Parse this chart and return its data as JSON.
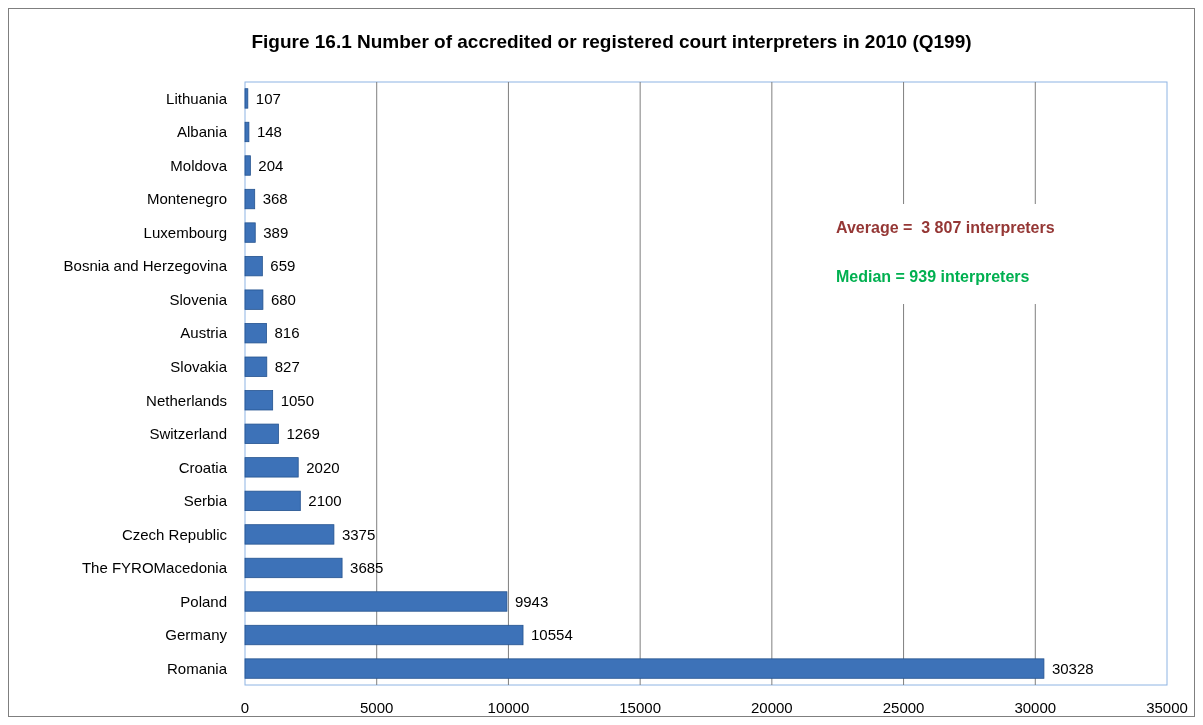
{
  "chart_data": {
    "type": "bar",
    "orientation": "horizontal",
    "title": "Figure 16.1 Number of accredited or registered court interpreters in 2010 (Q199)",
    "categories": [
      "Lithuania",
      "Albania",
      "Moldova",
      "Montenegro",
      "Luxembourg",
      "Bosnia and Herzegovina",
      "Slovenia",
      "Austria",
      "Slovakia",
      "Netherlands",
      "Switzerland",
      "Croatia",
      "Serbia",
      "Czech Republic",
      "The FYROMacedonia",
      "Poland",
      "Germany",
      "Romania"
    ],
    "values": [
      107,
      148,
      204,
      368,
      389,
      659,
      680,
      816,
      827,
      1050,
      1269,
      2020,
      2100,
      3375,
      3685,
      9943,
      10554,
      30328
    ],
    "color": "#3d72b8",
    "xlim": [
      0,
      35000
    ],
    "xticks": [
      0,
      5000,
      10000,
      15000,
      20000,
      25000,
      30000,
      35000
    ],
    "grid": "x",
    "data_labels": true,
    "annotations": [
      "Average =  3 807 interpreters",
      "Median = 939 interpreters"
    ]
  }
}
